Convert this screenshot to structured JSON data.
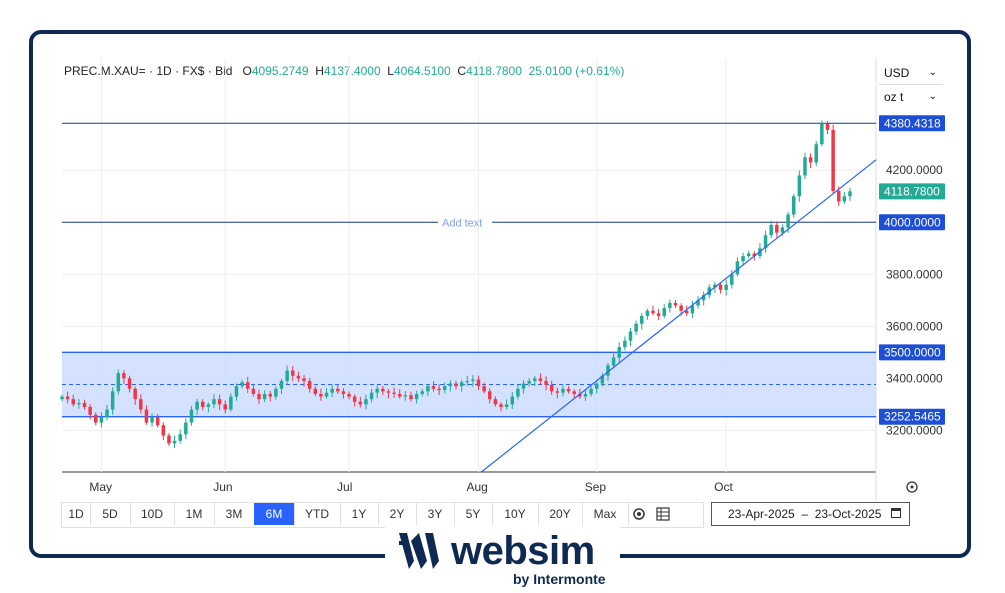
{
  "legend": {
    "symbol": "PREC.M.XAU=",
    "interval": "1D",
    "source": "FX$",
    "side": "Bid",
    "open_label": "O",
    "open": "4095.2749",
    "high_label": "H",
    "high": "4137.4000",
    "low_label": "L",
    "low": "4064.5100",
    "close_label": "C",
    "close": "4118.7800",
    "change": "25.0100 (+0.61%)"
  },
  "currency_select": "USD",
  "unit_select": "oz t",
  "annotation_text": "Add text",
  "timeframes": [
    "1D",
    "5D",
    "10D",
    "1M",
    "3M",
    "6M",
    "YTD",
    "1Y",
    "2Y",
    "3Y",
    "5Y",
    "10Y",
    "20Y",
    "Max"
  ],
  "active_timeframe": "6M",
  "date_range": {
    "from": "23-Apr-2025",
    "sep": "–",
    "to": "23-Oct-2025"
  },
  "colors": {
    "up": "#22ab94",
    "down": "#f23645",
    "line": "#2962ff",
    "band": "#c7d8ff",
    "frame": "#0f2a52"
  },
  "branding": {
    "name": "websim",
    "sub": "by Intermonte"
  },
  "chart_data": {
    "type": "candlestick",
    "ylim": [
      3040,
      4420
    ],
    "yticks": [
      "3200.0000",
      "3400.0000",
      "3600.0000",
      "3800.0000",
      "4000.0000",
      "4200.0000"
    ],
    "price_labels": [
      {
        "value": 4380.4318,
        "text": "4380.4318",
        "kind": "level"
      },
      {
        "value": 4118.78,
        "text": "4118.7800",
        "kind": "last"
      },
      {
        "value": 4000.0,
        "text": "4000.0000",
        "kind": "level"
      },
      {
        "value": 3500.0,
        "text": "3500.0000",
        "kind": "level"
      },
      {
        "value": 3252.5465,
        "text": "3252.5465",
        "kind": "level"
      }
    ],
    "x_months": [
      "May",
      "Jun",
      "Jul",
      "Aug",
      "Sep",
      "Oct"
    ],
    "month_start_index": [
      7,
      29,
      51,
      74,
      95,
      118
    ],
    "horizontal_levels": [
      4380.4318,
      4000.0
    ],
    "range_band": {
      "top": 3500.0,
      "bottom": 3252.5465,
      "mid": 3376.27
    },
    "trendline": {
      "from": {
        "index": 74.5,
        "value": 3040
      },
      "to": {
        "index": 137,
        "value": 4240
      }
    },
    "closes": [
      3330,
      3320,
      3300,
      3305,
      3290,
      3260,
      3230,
      3250,
      3280,
      3350,
      3420,
      3400,
      3360,
      3320,
      3280,
      3230,
      3250,
      3220,
      3180,
      3150,
      3160,
      3185,
      3230,
      3280,
      3310,
      3290,
      3300,
      3320,
      3300,
      3280,
      3330,
      3370,
      3385,
      3360,
      3340,
      3320,
      3340,
      3330,
      3360,
      3390,
      3430,
      3410,
      3400,
      3390,
      3360,
      3340,
      3330,
      3345,
      3360,
      3350,
      3340,
      3330,
      3310,
      3300,
      3320,
      3345,
      3360,
      3350,
      3345,
      3340,
      3330,
      3335,
      3320,
      3340,
      3350,
      3370,
      3360,
      3355,
      3370,
      3380,
      3370,
      3385,
      3390,
      3395,
      3370,
      3350,
      3320,
      3300,
      3290,
      3300,
      3330,
      3360,
      3380,
      3390,
      3400,
      3390,
      3375,
      3350,
      3345,
      3360,
      3350,
      3340,
      3330,
      3340,
      3360,
      3380,
      3410,
      3450,
      3480,
      3520,
      3545,
      3580,
      3610,
      3640,
      3660,
      3650,
      3640,
      3670,
      3690,
      3680,
      3660,
      3650,
      3680,
      3700,
      3720,
      3750,
      3760,
      3740,
      3760,
      3800,
      3850,
      3870,
      3880,
      3870,
      3900,
      3950,
      3990,
      3960,
      3980,
      4030,
      4100,
      4180,
      4250,
      4230,
      4300,
      4380,
      4355,
      4120,
      4080,
      4100,
      4119
    ],
    "min_value": 3040
  }
}
